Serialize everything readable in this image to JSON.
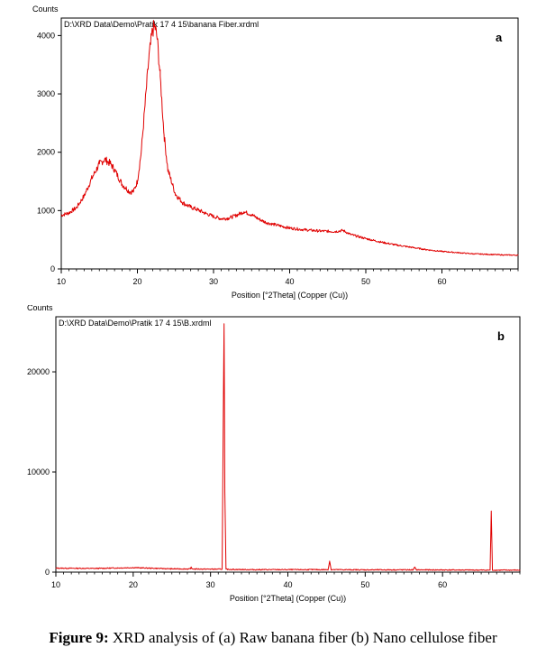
{
  "caption": {
    "bold": "Figure 9:",
    "text": " XRD analysis of (a) Raw banana fiber (b) Nano cellulose fiber"
  },
  "colors": {
    "trace": "#e00000",
    "axis": "#000000"
  },
  "chart_data": [
    {
      "type": "line",
      "panel_label": "a",
      "file_label": "D:\\XRD Data\\Demo\\Pratik 17 4 15\\banana Fiber.xrdml",
      "xlabel": "Position [°2Theta] (Copper (Cu))",
      "ylabel": "Counts",
      "xlim": [
        10,
        70
      ],
      "ylim": [
        0,
        4300
      ],
      "xticks": [
        10,
        20,
        30,
        40,
        50,
        60
      ],
      "yticks": [
        0,
        1000,
        2000,
        3000,
        4000
      ],
      "grid": false,
      "series": [
        {
          "x": [
            10,
            11,
            12,
            13,
            14,
            15,
            15.7,
            16.5,
            17,
            18,
            19,
            19.5,
            20,
            20.5,
            21,
            21.5,
            22,
            22.3,
            22.6,
            23,
            23.5,
            24,
            25,
            26,
            27,
            28,
            29,
            30,
            31,
            32,
            33,
            34,
            35,
            36,
            37,
            38,
            40,
            42,
            44,
            46,
            47,
            48,
            50,
            52,
            54,
            56,
            58,
            60,
            62,
            64,
            66,
            68,
            70
          ],
          "y": [
            920,
            960,
            1050,
            1250,
            1550,
            1800,
            1880,
            1800,
            1700,
            1450,
            1320,
            1330,
            1500,
            2000,
            2800,
            3600,
            4100,
            4150,
            3950,
            3300,
            2300,
            1700,
            1280,
            1130,
            1060,
            1010,
            950,
            900,
            860,
            870,
            920,
            980,
            930,
            850,
            790,
            760,
            700,
            670,
            650,
            640,
            660,
            590,
            520,
            460,
            410,
            370,
            330,
            300,
            280,
            260,
            250,
            240,
            235
          ]
        }
      ]
    },
    {
      "type": "line",
      "panel_label": "b",
      "file_label": "D:\\XRD Data\\Demo\\Pratik 17 4 15\\B.xrdml",
      "xlabel": "Position [°2Theta] (Copper (Cu))",
      "ylabel": "Counts",
      "xlim": [
        10,
        70
      ],
      "ylim": [
        0,
        25500
      ],
      "xticks": [
        10,
        20,
        30,
        40,
        50,
        60
      ],
      "yticks": [
        0,
        10000,
        20000
      ],
      "grid": false,
      "series": [
        {
          "x": [
            10,
            15,
            20,
            25,
            27.4,
            27.5,
            27.6,
            30,
            31.5,
            31.65,
            31.75,
            31.85,
            32.0,
            32.2,
            35,
            40,
            45.2,
            45.4,
            45.6,
            50,
            56.2,
            56.4,
            56.6,
            60,
            66.15,
            66.3,
            66.45,
            70
          ],
          "y": [
            400,
            370,
            450,
            330,
            320,
            520,
            320,
            300,
            300,
            15600,
            24800,
            8000,
            300,
            280,
            250,
            250,
            250,
            1100,
            250,
            230,
            230,
            500,
            230,
            220,
            200,
            6100,
            200,
            200
          ]
        }
      ]
    }
  ]
}
